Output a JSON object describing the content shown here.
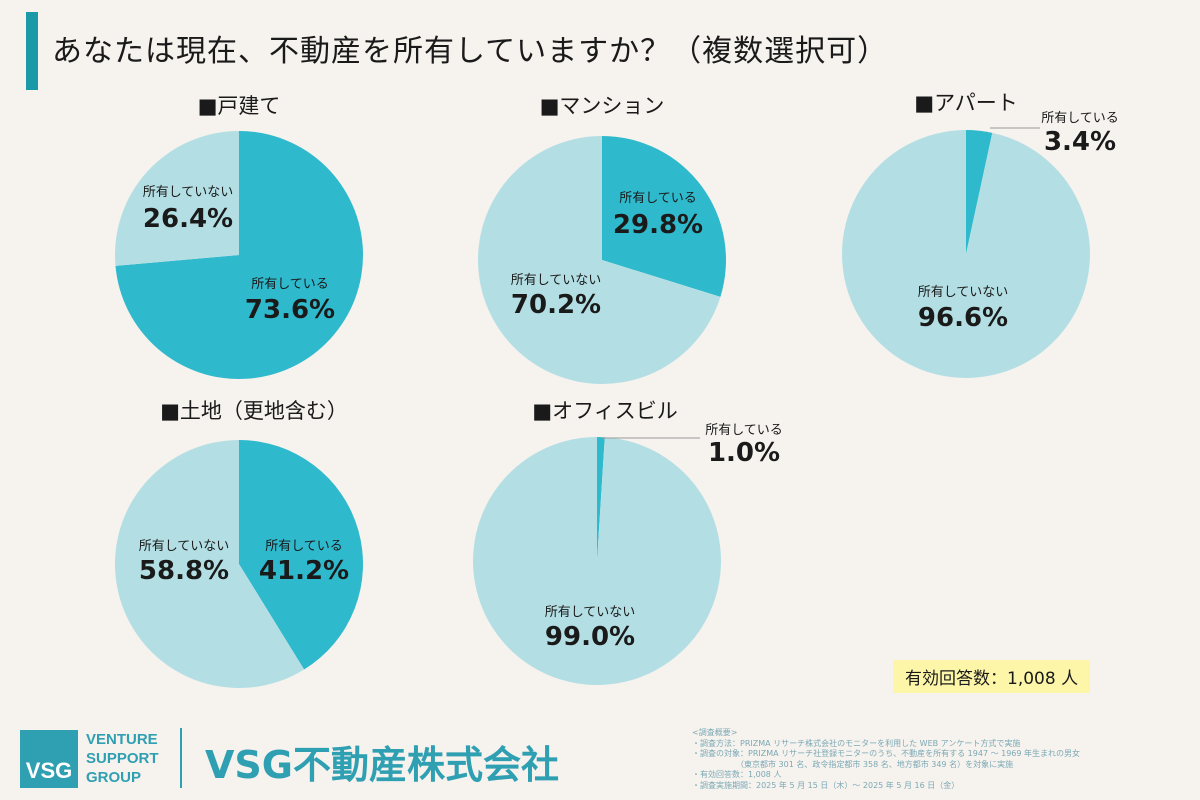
{
  "title": "あなたは現在、不動産を所有していますか？（複数選択可）",
  "colors": {
    "owned": "#2fb9cc",
    "not_owned": "#b3dfe4",
    "accent": "#1a9aa8"
  },
  "chart_data": [
    {
      "type": "pie",
      "title": "■戸建て",
      "slices": [
        {
          "label": "所有している",
          "value": 73.6,
          "display": "73.6%"
        },
        {
          "label": "所有していない",
          "value": 26.4,
          "display": "26.4%"
        }
      ]
    },
    {
      "type": "pie",
      "title": "■マンション",
      "slices": [
        {
          "label": "所有している",
          "value": 29.8,
          "display": "29.8%"
        },
        {
          "label": "所有していない",
          "value": 70.2,
          "display": "70.2%"
        }
      ]
    },
    {
      "type": "pie",
      "title": "■アパート",
      "slices": [
        {
          "label": "所有している",
          "value": 3.4,
          "display": "3.4%"
        },
        {
          "label": "所有していない",
          "value": 96.6,
          "display": "96.6%"
        }
      ]
    },
    {
      "type": "pie",
      "title": "■土地（更地含む）",
      "slices": [
        {
          "label": "所有している",
          "value": 41.2,
          "display": "41.2%"
        },
        {
          "label": "所有していない",
          "value": 58.8,
          "display": "58.8%"
        }
      ]
    },
    {
      "type": "pie",
      "title": "■オフィスビル",
      "slices": [
        {
          "label": "所有している",
          "value": 1.0,
          "display": "1.0%"
        },
        {
          "label": "所有していない",
          "value": 99.0,
          "display": "99.0%"
        }
      ]
    }
  ],
  "total_respondents": "有効回答数：1,008 人",
  "footer": {
    "logo_mark": "VSG",
    "logo_lines": [
      "VENTURE",
      "SUPPORT",
      "GROUP"
    ],
    "company": "VSG不動産株式会社",
    "notes": [
      "<調査概要>",
      "・調査方法：PRIZMA リサーチ株式会社のモニターを利用した WEB アンケート方式で実施",
      "・調査の対象：PRIZMA リサーチ社登録モニターのうち、不動産を所有する 1947 ～ 1969 年生まれの男女",
      "　　　　　　（東京都市 301 名、政令指定都市 358 名、地方都市 349 名）を対象に実施",
      "・有効回答数：1,008 人",
      "・調査実施期間：2025 年 5 月 15 日（木）～ 2025 年 5 月 16 日（金）"
    ]
  }
}
